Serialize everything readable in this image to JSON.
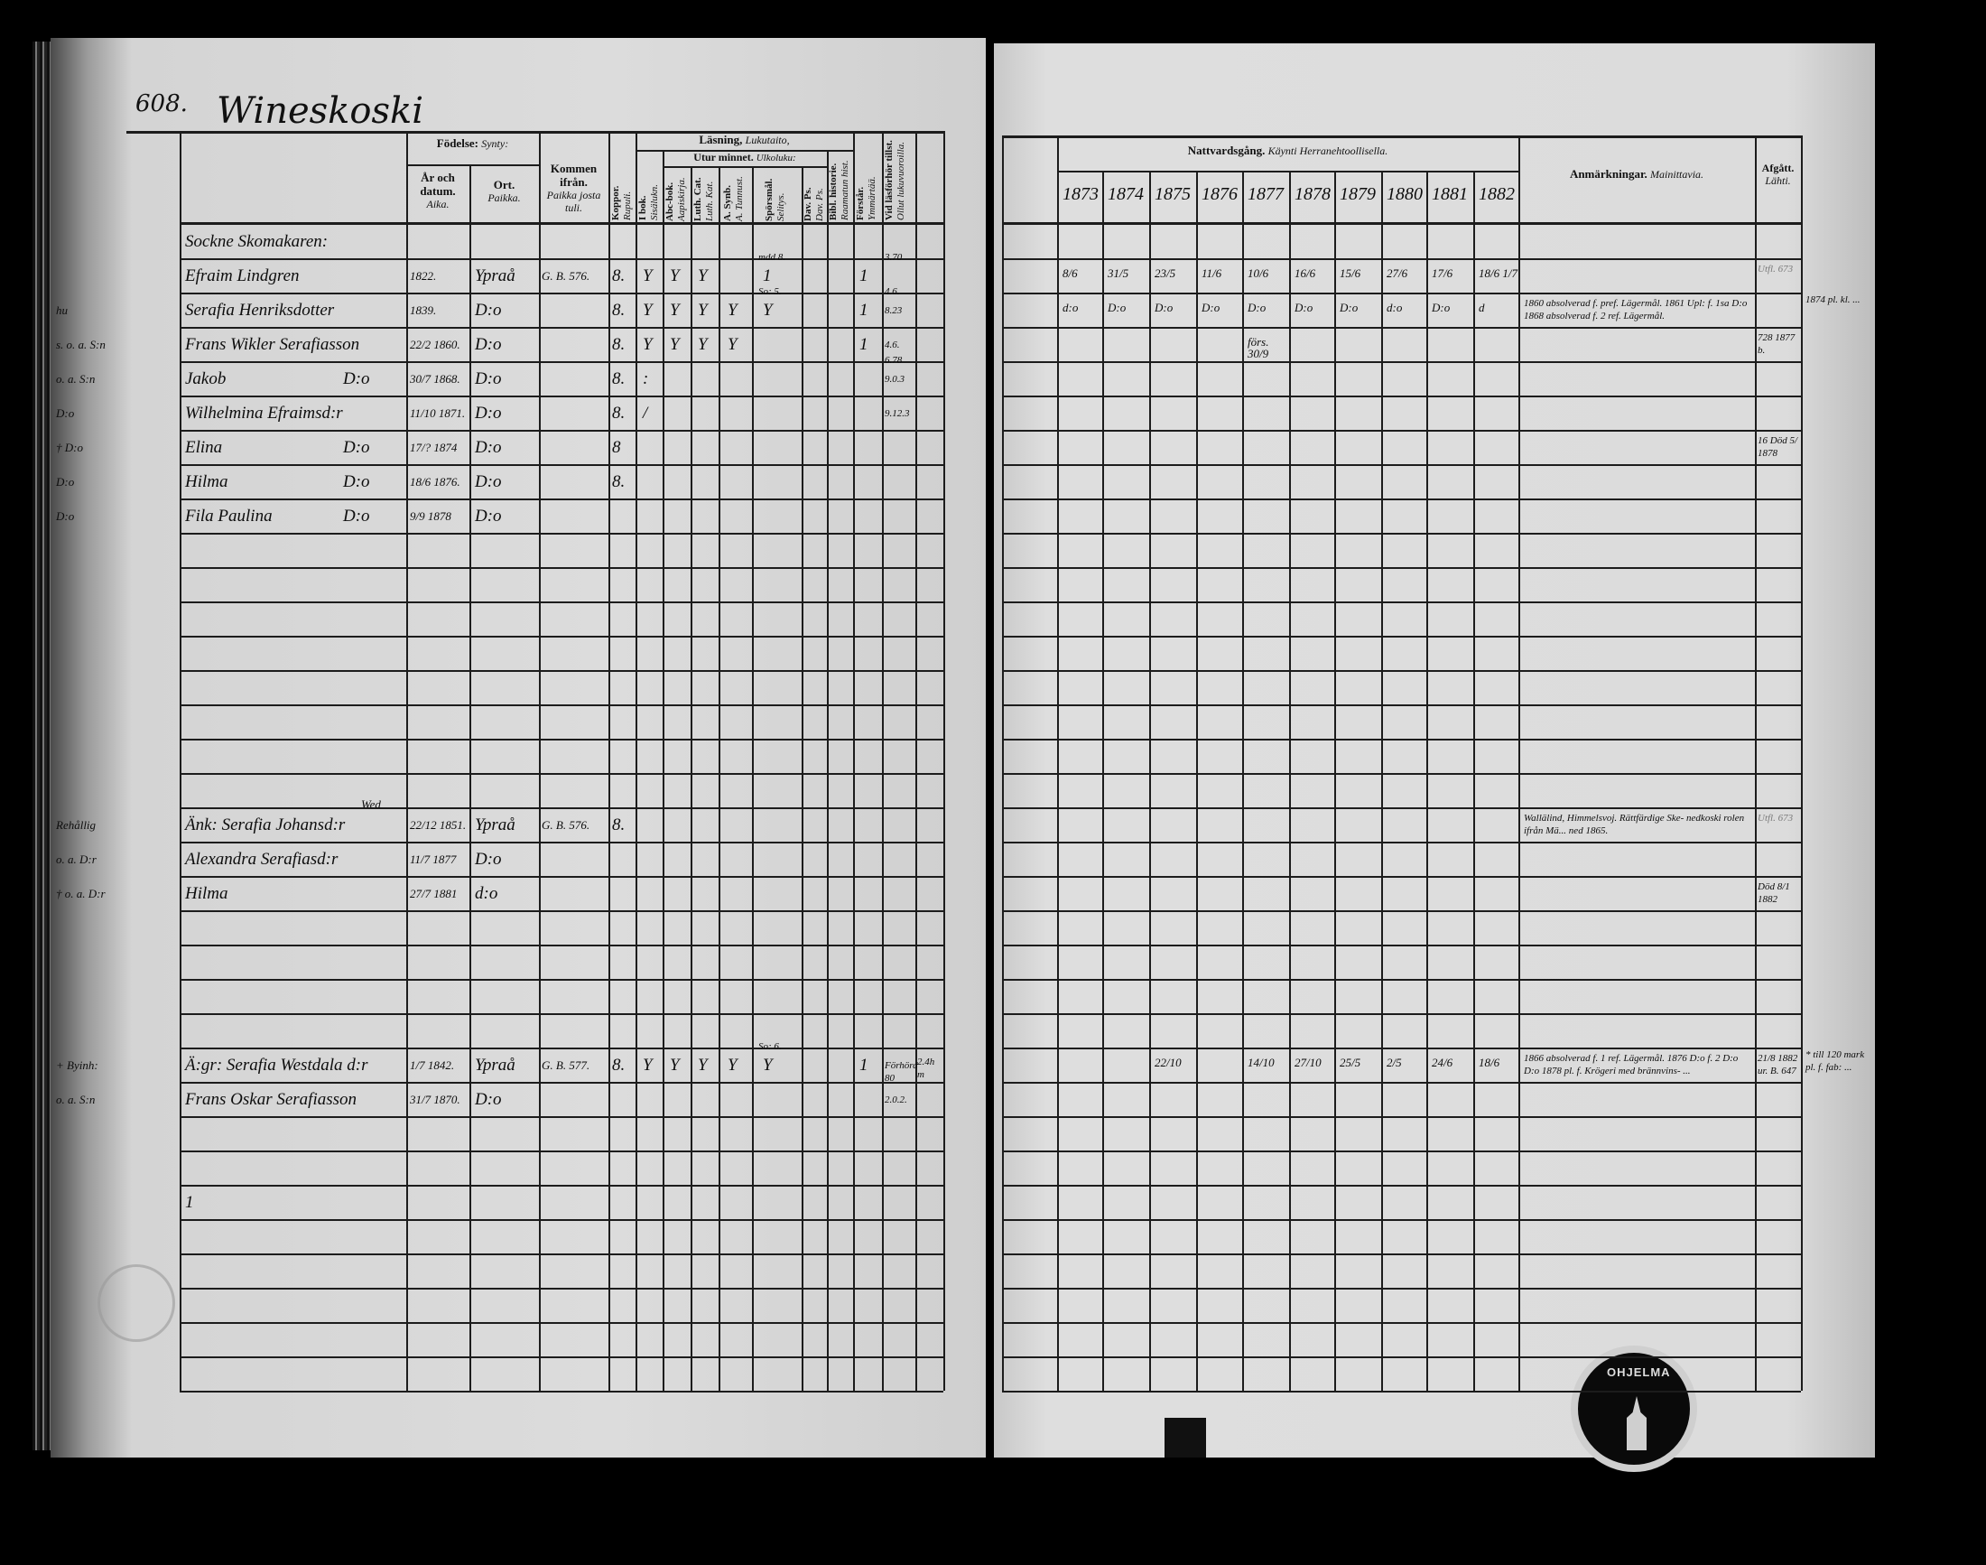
{
  "header": {
    "page_number": "608.",
    "place_title": "Wineskoski"
  },
  "left_headers": {
    "fodelse": "Födelse:",
    "fodelse_fi": "Synty:",
    "ar": "År och datum.",
    "ar_fi": "Aika.",
    "ort": "Ort.",
    "ort_fi": "Paikka.",
    "kommen": "Kommen ifrån.",
    "kommen_fi": "Paikka josta tuli.",
    "koppor": "Koppor.",
    "koppor_fi": "Rupuli.",
    "lasning": "Läsning,",
    "lasning_fi": "Lukutaito,",
    "ibok": "I bok.",
    "ibok_fi": "Sisälukn.",
    "utur": "Utur minnet.",
    "utur_fi": "Ulkoluku:",
    "abc": "Abc-bok.",
    "abc_fi": "Aapiskirja.",
    "luth": "Luth. Cat.",
    "luth_fi": "Luth. Kat.",
    "synb": "A. Synb.",
    "synb_fi": "A. Tunnust.",
    "spors": "Spörsmål.",
    "spors_fi": "Selitys.",
    "dav": "Dav. Ps.",
    "dav_fi": "Dav. Ps.",
    "bibl": "Bibl. historie.",
    "bibl_fi": "Raamatun hist.",
    "forstar": "Förstår.",
    "forstar_fi": "Ymmärtää.",
    "forhor": "Vid läsförhör tillst.",
    "forhor_fi": "Ollut lukuvuoroilla."
  },
  "right_headers": {
    "nattvard": "Nattvardsgång.",
    "nattvard_fi": "Käynti Herranehtoollisella.",
    "years": [
      "1873",
      "1874",
      "1875",
      "1876",
      "1877",
      "1878",
      "1879",
      "1880",
      "1881",
      "1882"
    ],
    "anm": "Anmärkningar.",
    "anm_fi": "Mainittavia.",
    "afgatt": "Afgått.",
    "afgatt_fi": "Lähti."
  },
  "left": {
    "rows": [
      {
        "name": "Sockne Skomakaren:"
      },
      {
        "name": "Efraim Lindgren",
        "date": "1822.",
        "place": "Ypraå",
        "from": "G. B. 576.",
        "kopp": "8.",
        "ibok": "Y",
        "abc": "Y",
        "luth": "Y",
        "spors": "1",
        "spors_note": "mdd 8.",
        "forstar": "1",
        "forhor_note": "3.70"
      },
      {
        "prefix": "hu",
        "name": "Serafia Henriksdotter",
        "date": "1839.",
        "place": "D:o",
        "kopp": "8.",
        "ibok": "Y",
        "abc": "Y",
        "luth": "Y",
        "synb": "Y",
        "spors": "Y",
        "spors_note": "So: 5.",
        "forstar": "1",
        "forhor": "8.23",
        "forhor_note": "4.6."
      },
      {
        "prefix": "s. o. a. S:n",
        "name": "Frans Wikler Serafiasson",
        "date": "22/2 1860.",
        "place": "D:o",
        "kopp": "8.",
        "ibok": "Y",
        "abc": "Y",
        "luth": "Y",
        "synb": "Y",
        "forstar": "1",
        "forhor": "4.6."
      },
      {
        "prefix": "o. a. S:n",
        "name": "Jakob",
        "name_do": "D:o",
        "date": "30/7 1868.",
        "place": "D:o",
        "kopp": "8.",
        "ibok": ":",
        "forhor": "9.0.3",
        "forhor_note": "6.78"
      },
      {
        "prefix": "D:o",
        "name": "Wilhelmina Efraimsd:r",
        "date": "11/10 1871.",
        "place": "D:o",
        "kopp": "8.",
        "ibok": "/",
        "forhor": "9.12.3"
      },
      {
        "prefix": "† D:o",
        "name": "Elina",
        "name_do": "D:o",
        "date": "17/? 1874",
        "place": "D:o",
        "kopp": "8"
      },
      {
        "prefix": "D:o",
        "name": "Hilma",
        "name_do": "D:o",
        "date": "18/6 1876.",
        "place": "D:o",
        "kopp": "8."
      },
      {
        "prefix": "D:o",
        "name": "Fila Paulina",
        "name_do": "D:o",
        "date": "9/9 1878",
        "place": "D:o"
      },
      null,
      null,
      null,
      null,
      null,
      null,
      null,
      null,
      {
        "prefix": "Rehållig",
        "name": "Änk: Serafia Johansd:r",
        "name_note": "Wed",
        "date": "22/12 1851.",
        "place": "Ypraå",
        "from": "G. B. 576.",
        "kopp": "8."
      },
      {
        "prefix": "o. a. D:r",
        "name": "Alexandra Serafiasd:r",
        "date": "11/7 1877",
        "place": "D:o"
      },
      {
        "prefix": "† o. a. D:r",
        "name": "Hilma",
        "date": "27/7 1881",
        "place": "d:o"
      },
      null,
      null,
      null,
      null,
      {
        "prefix": "+ Byinh:",
        "name": "Ä:gr: Serafia Westdala d:r",
        "date": "1/7 1842.",
        "place": "Ypraå",
        "from": "G. B. 577.",
        "kopp": "8.",
        "ibok": "Y",
        "abc": "Y",
        "luth": "Y",
        "synb": "Y",
        "spors": "Y",
        "spors_note": "So: 6.",
        "forstar": "1",
        "forhor": "Förhörd 80",
        "extra": "2.4h m"
      },
      {
        "prefix": "o. a. S:n",
        "name": "Frans Oskar Serafiasson",
        "date": "31/7 1870.",
        "place": "D:o",
        "forhor": "2.0.2."
      },
      null,
      null,
      {
        "name": "1"
      }
    ]
  },
  "right": {
    "rows": [
      null,
      {
        "c1873": "8/6",
        "c1874": "31/5",
        "c1875": "23/5",
        "c1876": "11/6",
        "c1877": "10/6",
        "c1878": "16/6",
        "c1879": "15/6",
        "c1880": "27/6",
        "c1881": "17/6",
        "c1882": "18/6 1/7",
        "afgatt": "Utfl. 673"
      },
      {
        "c1873": "d:o",
        "c1874": "D:o",
        "c1875": "D:o",
        "c1876": "D:o",
        "c1877": "D:o",
        "c1878": "D:o",
        "c1879": "D:o",
        "c1880": "d:o",
        "c1881": "D:o",
        "c1882": "d",
        "remarks": "1860 absolverad f. pref. Lägermål. 1861 Upl: f. 1sa D:o 1868 absolverad f. 2 ref. Lägermål.",
        "margin": "1874 pl. kl. ..."
      },
      {
        "c1877": "förs. 30/9",
        "afgatt": "728 1877 b."
      },
      null,
      null,
      {
        "afgatt": "16 Död 5/ 1878"
      },
      null,
      null,
      null,
      null,
      null,
      null,
      null,
      null,
      null,
      null,
      {
        "remarks": "Wallälind, Himmelsvoj. Rättfärdige Ske- nedkoski rolen ifrån Mä... ned 1865.",
        "afgatt": "Utfl. 673"
      },
      null,
      {
        "afgatt": "Död 8/1 1882"
      },
      null,
      null,
      null,
      null,
      {
        "c1875": "22/10",
        "c1877": "14/10",
        "c1878": "27/10",
        "c1879": "25/5",
        "c1880": "2/5",
        "c1881": "24/6",
        "c1882": "18/6",
        "remarks": "1866 absolverad f. 1 ref. Lägermål. 1876 D:o f. 2 D:o D:o 1878 pl. f. Krögeri med brännvins- ...",
        "afgatt": "21/8 1882 ur. B. 647",
        "margin": "* till 120 mark pl. f. fab: ..."
      }
    ]
  },
  "stamps": {
    "library_stamp": "OHJELMA"
  }
}
